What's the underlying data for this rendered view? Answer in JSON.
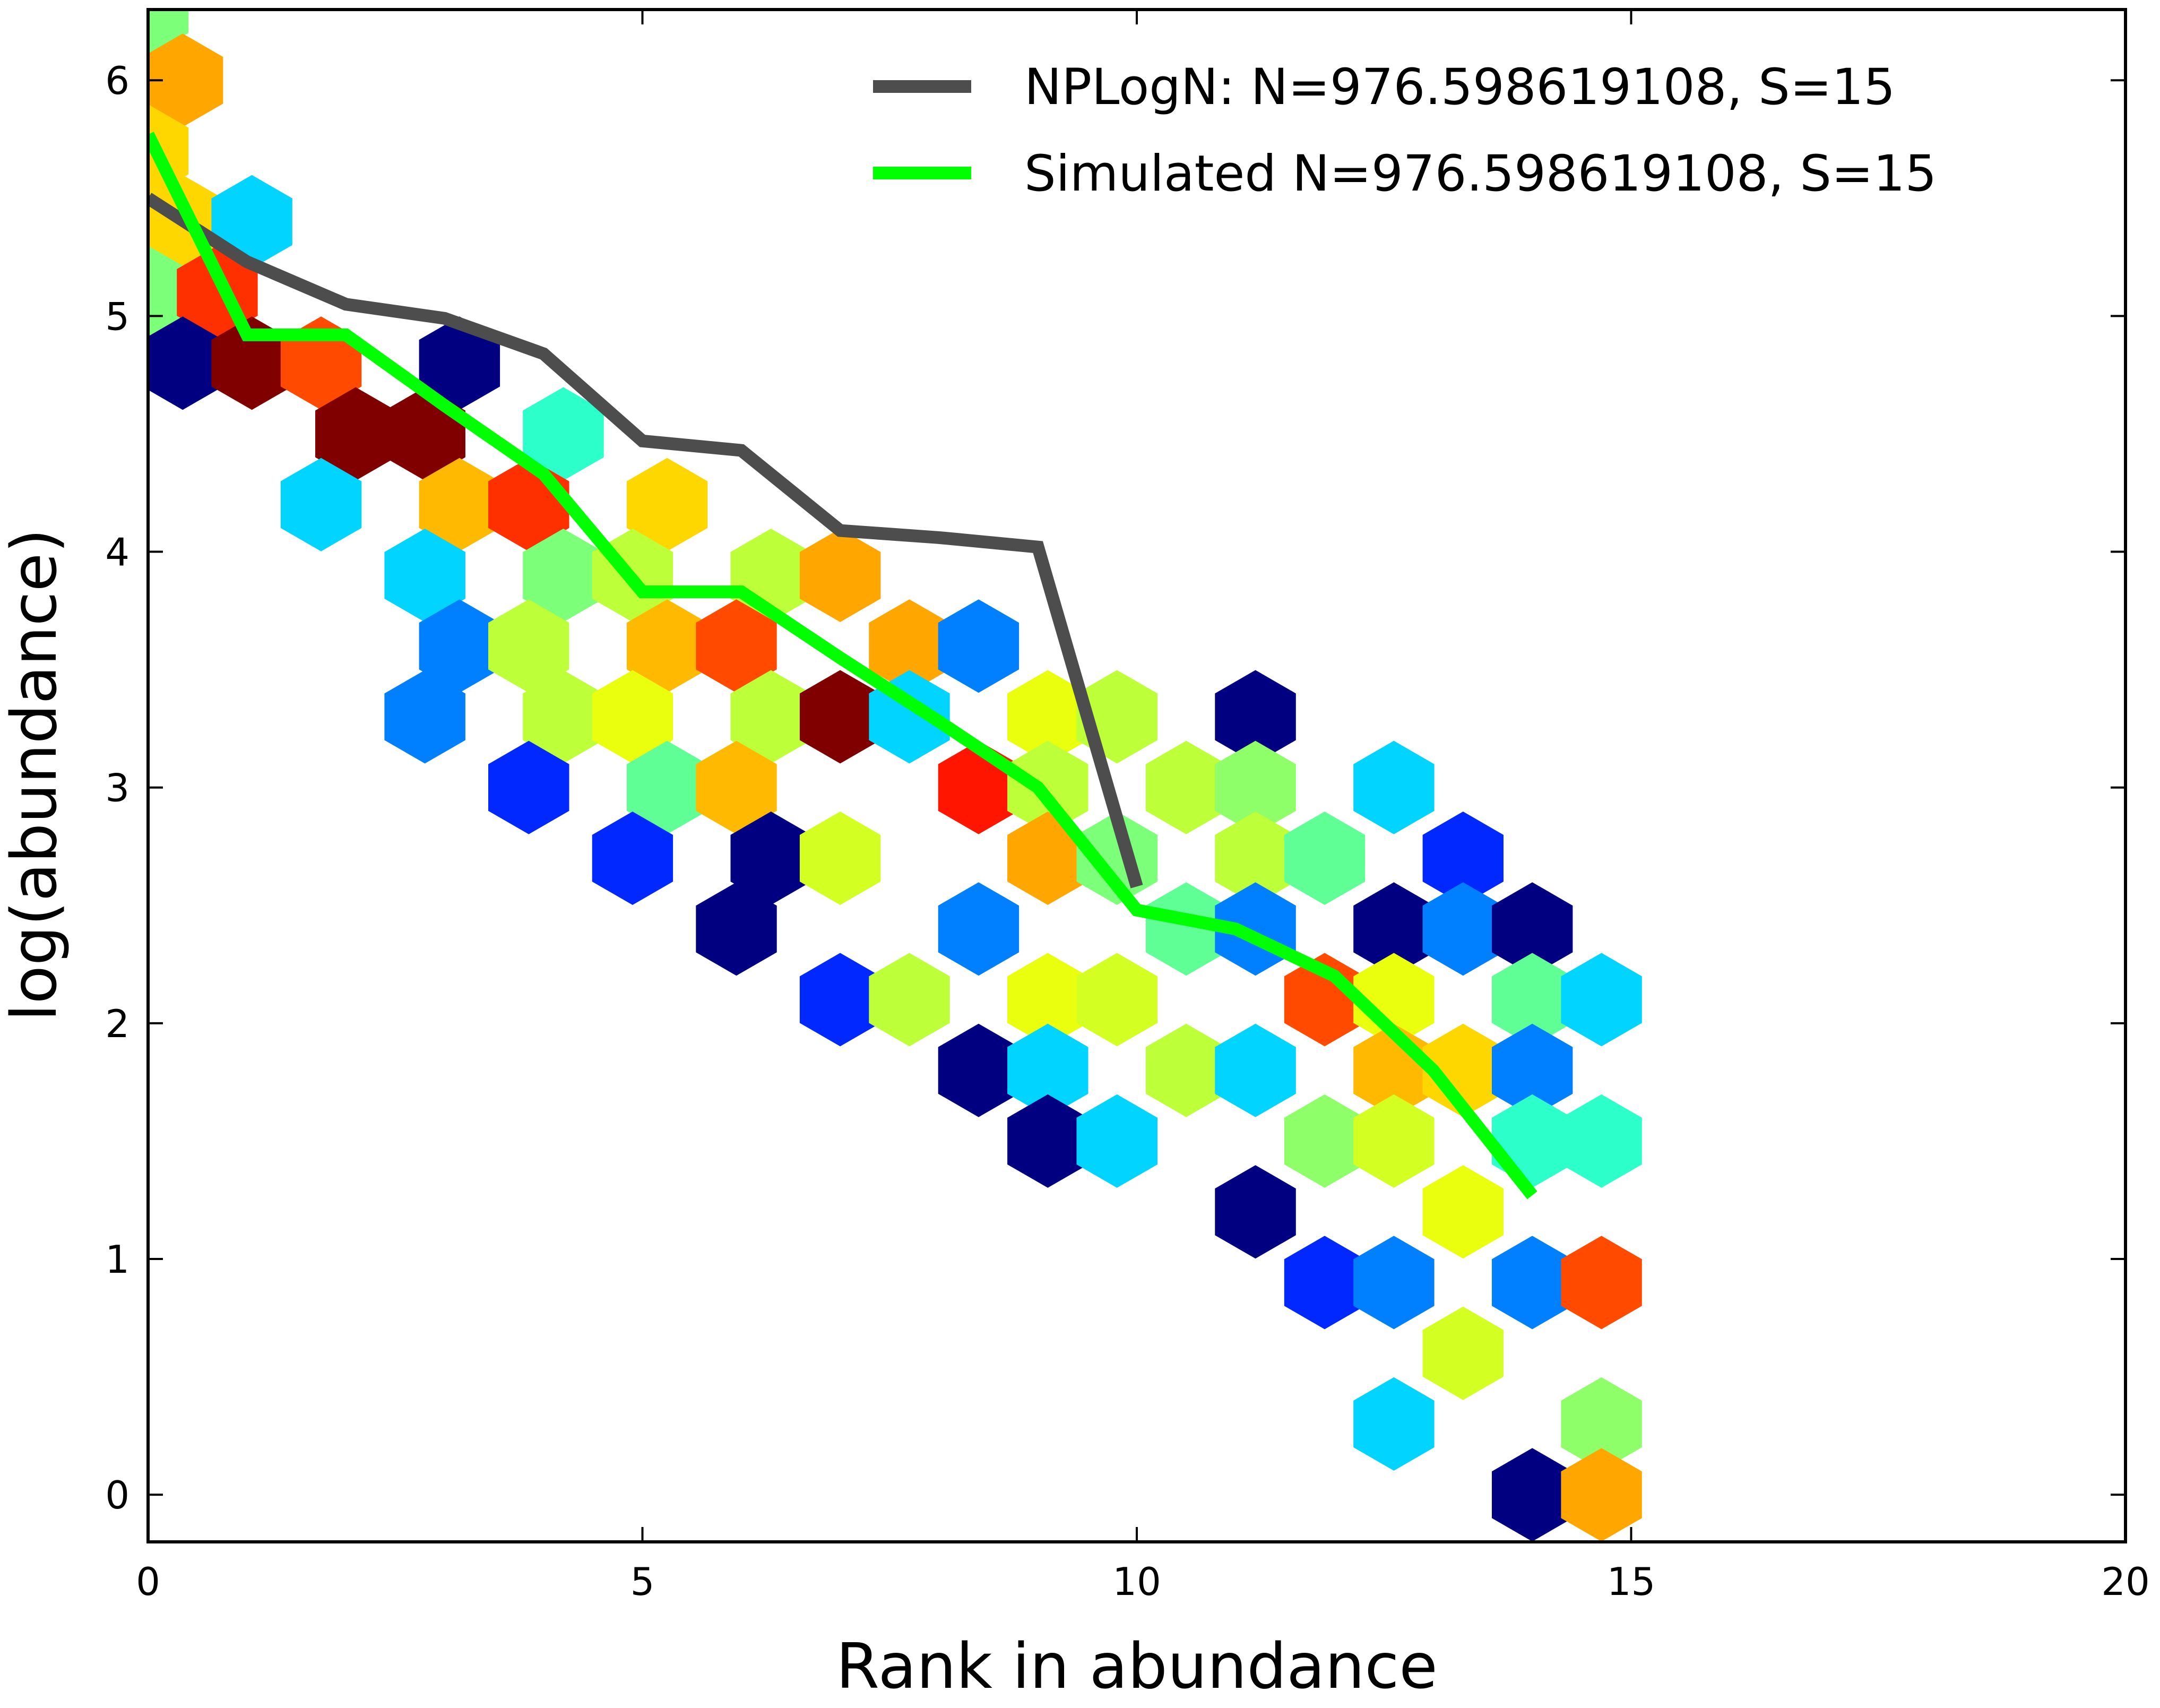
{
  "chart_data": {
    "type": "scatter",
    "subtype": "hexbin with overlaid rank-abundance lines",
    "xlabel": "Rank in abundance",
    "ylabel": "log(abundance)",
    "xlim": [
      0,
      20
    ],
    "ylim": [
      -0.2,
      6.3
    ],
    "xticks": [
      0,
      5,
      10,
      15,
      20
    ],
    "yticks": [
      0,
      1,
      2,
      3,
      4,
      5,
      6
    ],
    "grid": false,
    "legend_position": "top-right",
    "hex_colormap": "jet",
    "hexbins": [
      {
        "x": 0.0,
        "y": 6.3,
        "c": "#7cff79"
      },
      {
        "x": 0.35,
        "y": 6.0,
        "c": "#ffa600"
      },
      {
        "x": 0.0,
        "y": 5.7,
        "c": "#ffd700"
      },
      {
        "x": 0.35,
        "y": 5.4,
        "c": "#ffd700"
      },
      {
        "x": 1.05,
        "y": 5.4,
        "c": "#00d4ff"
      },
      {
        "x": 0.0,
        "y": 5.1,
        "c": "#7cff79"
      },
      {
        "x": 0.7,
        "y": 5.1,
        "c": "#ff3000"
      },
      {
        "x": 0.35,
        "y": 4.8,
        "c": "#000080"
      },
      {
        "x": 1.05,
        "y": 4.8,
        "c": "#800000"
      },
      {
        "x": 1.75,
        "y": 4.8,
        "c": "#ff4a00"
      },
      {
        "x": 3.15,
        "y": 4.8,
        "c": "#000080"
      },
      {
        "x": 2.1,
        "y": 4.5,
        "c": "#800000"
      },
      {
        "x": 2.8,
        "y": 4.5,
        "c": "#800000"
      },
      {
        "x": 4.2,
        "y": 4.5,
        "c": "#2cffca"
      },
      {
        "x": 1.75,
        "y": 4.2,
        "c": "#00d4ff"
      },
      {
        "x": 3.15,
        "y": 4.2,
        "c": "#ffb900"
      },
      {
        "x": 3.85,
        "y": 4.2,
        "c": "#ff3000"
      },
      {
        "x": 5.25,
        "y": 4.2,
        "c": "#ffd700"
      },
      {
        "x": 2.8,
        "y": 3.9,
        "c": "#00d4ff"
      },
      {
        "x": 4.2,
        "y": 3.9,
        "c": "#7cff79"
      },
      {
        "x": 4.9,
        "y": 3.9,
        "c": "#bdff39"
      },
      {
        "x": 6.3,
        "y": 3.9,
        "c": "#bdff39"
      },
      {
        "x": 7.0,
        "y": 3.9,
        "c": "#ffa600"
      },
      {
        "x": 3.15,
        "y": 3.6,
        "c": "#0080ff"
      },
      {
        "x": 3.85,
        "y": 3.6,
        "c": "#bdff39"
      },
      {
        "x": 5.25,
        "y": 3.6,
        "c": "#ffb900"
      },
      {
        "x": 5.95,
        "y": 3.6,
        "c": "#ff4a00"
      },
      {
        "x": 7.7,
        "y": 3.6,
        "c": "#ffa600"
      },
      {
        "x": 8.4,
        "y": 3.6,
        "c": "#0080ff"
      },
      {
        "x": 2.8,
        "y": 3.3,
        "c": "#0080ff"
      },
      {
        "x": 4.2,
        "y": 3.3,
        "c": "#bdff39"
      },
      {
        "x": 4.9,
        "y": 3.3,
        "c": "#eaff0d"
      },
      {
        "x": 6.3,
        "y": 3.3,
        "c": "#bdff39"
      },
      {
        "x": 7.0,
        "y": 3.3,
        "c": "#800000"
      },
      {
        "x": 7.7,
        "y": 3.3,
        "c": "#00d4ff"
      },
      {
        "x": 9.1,
        "y": 3.3,
        "c": "#eaff0d"
      },
      {
        "x": 9.8,
        "y": 3.3,
        "c": "#bdff39"
      },
      {
        "x": 11.2,
        "y": 3.3,
        "c": "#000080"
      },
      {
        "x": 3.85,
        "y": 3.0,
        "c": "#0028ff"
      },
      {
        "x": 5.25,
        "y": 3.0,
        "c": "#5fff96"
      },
      {
        "x": 5.95,
        "y": 3.0,
        "c": "#ffb900"
      },
      {
        "x": 8.4,
        "y": 3.0,
        "c": "#ff1500"
      },
      {
        "x": 9.1,
        "y": 3.0,
        "c": "#bdff39"
      },
      {
        "x": 10.5,
        "y": 3.0,
        "c": "#bdff39"
      },
      {
        "x": 11.2,
        "y": 3.0,
        "c": "#8eff69"
      },
      {
        "x": 12.6,
        "y": 3.0,
        "c": "#00d4ff"
      },
      {
        "x": 4.9,
        "y": 2.7,
        "c": "#0028ff"
      },
      {
        "x": 6.3,
        "y": 2.7,
        "c": "#000080"
      },
      {
        "x": 7.0,
        "y": 2.7,
        "c": "#d4ff23"
      },
      {
        "x": 9.1,
        "y": 2.7,
        "c": "#ffa600"
      },
      {
        "x": 9.8,
        "y": 2.7,
        "c": "#7cff79"
      },
      {
        "x": 11.2,
        "y": 2.7,
        "c": "#bdff39"
      },
      {
        "x": 11.9,
        "y": 2.7,
        "c": "#5fff96"
      },
      {
        "x": 13.3,
        "y": 2.7,
        "c": "#0028ff"
      },
      {
        "x": 5.95,
        "y": 2.4,
        "c": "#000080"
      },
      {
        "x": 8.4,
        "y": 2.4,
        "c": "#0080ff"
      },
      {
        "x": 10.5,
        "y": 2.4,
        "c": "#5fff96"
      },
      {
        "x": 11.2,
        "y": 2.4,
        "c": "#0080ff"
      },
      {
        "x": 12.6,
        "y": 2.4,
        "c": "#000080"
      },
      {
        "x": 13.3,
        "y": 2.4,
        "c": "#0080ff"
      },
      {
        "x": 14.0,
        "y": 2.4,
        "c": "#000080"
      },
      {
        "x": 7.0,
        "y": 2.1,
        "c": "#0028ff"
      },
      {
        "x": 7.7,
        "y": 2.1,
        "c": "#bdff39"
      },
      {
        "x": 9.1,
        "y": 2.1,
        "c": "#eaff0d"
      },
      {
        "x": 9.8,
        "y": 2.1,
        "c": "#d4ff23"
      },
      {
        "x": 11.9,
        "y": 2.1,
        "c": "#ff4a00"
      },
      {
        "x": 12.6,
        "y": 2.1,
        "c": "#eaff0d"
      },
      {
        "x": 14.0,
        "y": 2.1,
        "c": "#5fff96"
      },
      {
        "x": 14.7,
        "y": 2.1,
        "c": "#00d4ff"
      },
      {
        "x": 8.4,
        "y": 1.8,
        "c": "#000080"
      },
      {
        "x": 9.1,
        "y": 1.8,
        "c": "#00d4ff"
      },
      {
        "x": 10.5,
        "y": 1.8,
        "c": "#bdff39"
      },
      {
        "x": 11.2,
        "y": 1.8,
        "c": "#00d4ff"
      },
      {
        "x": 12.6,
        "y": 1.8,
        "c": "#ffb900"
      },
      {
        "x": 13.3,
        "y": 1.8,
        "c": "#ffd700"
      },
      {
        "x": 14.0,
        "y": 1.8,
        "c": "#0080ff"
      },
      {
        "x": 9.1,
        "y": 1.5,
        "c": "#000080"
      },
      {
        "x": 9.8,
        "y": 1.5,
        "c": "#00d4ff"
      },
      {
        "x": 11.9,
        "y": 1.5,
        "c": "#8eff69"
      },
      {
        "x": 12.6,
        "y": 1.5,
        "c": "#d4ff23"
      },
      {
        "x": 14.0,
        "y": 1.5,
        "c": "#2cffca"
      },
      {
        "x": 14.7,
        "y": 1.5,
        "c": "#2cffca"
      },
      {
        "x": 11.2,
        "y": 1.2,
        "c": "#000080"
      },
      {
        "x": 13.3,
        "y": 1.2,
        "c": "#eaff0d"
      },
      {
        "x": 11.9,
        "y": 0.9,
        "c": "#0028ff"
      },
      {
        "x": 12.6,
        "y": 0.9,
        "c": "#0080ff"
      },
      {
        "x": 14.0,
        "y": 0.9,
        "c": "#0080ff"
      },
      {
        "x": 14.7,
        "y": 0.9,
        "c": "#ff4a00"
      },
      {
        "x": 13.3,
        "y": 0.6,
        "c": "#d4ff23"
      },
      {
        "x": 12.6,
        "y": 0.3,
        "c": "#00d4ff"
      },
      {
        "x": 14.7,
        "y": 0.3,
        "c": "#8eff69"
      },
      {
        "x": 14.0,
        "y": 0.0,
        "c": "#000080"
      },
      {
        "x": 14.7,
        "y": 0.0,
        "c": "#ffa600"
      }
    ],
    "series": [
      {
        "name": "NPLogN: N=976.598619108, S=15",
        "color": "#4d4d4d",
        "x": [
          0,
          1,
          2,
          3,
          4,
          5,
          6,
          7,
          8,
          9,
          10
        ],
        "y": [
          5.5,
          5.23,
          5.05,
          4.99,
          4.84,
          4.47,
          4.43,
          4.09,
          4.06,
          4.02,
          2.58
        ]
      },
      {
        "name": "Simulated N=976.598619108, S=15",
        "color": "#00ff00",
        "x": [
          0,
          1,
          2,
          3,
          4,
          5,
          6,
          7,
          8,
          9,
          10,
          11,
          12,
          13,
          14
        ],
        "y": [
          5.77,
          4.92,
          4.92,
          4.62,
          4.33,
          3.83,
          3.83,
          3.55,
          3.28,
          3.0,
          2.48,
          2.4,
          2.2,
          1.8,
          1.27
        ]
      }
    ]
  }
}
